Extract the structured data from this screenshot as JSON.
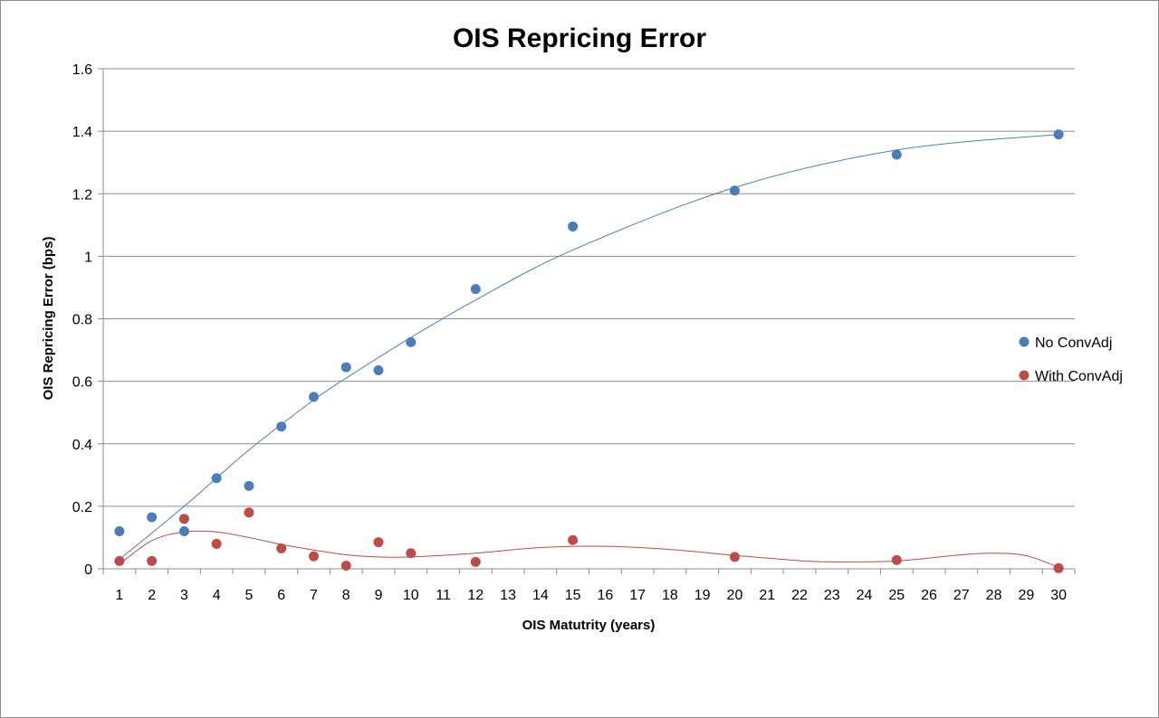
{
  "chart_data": {
    "type": "scatter",
    "title": "OIS Repricing Error",
    "xlabel": "OIS Matutrity  (years)",
    "ylabel": "OIS Repricing Error (bps)",
    "xlim": [
      0.5,
      30.5
    ],
    "ylim": [
      0,
      1.6
    ],
    "x_ticks": [
      "1",
      "2",
      "3",
      "4",
      "5",
      "6",
      "7",
      "8",
      "9",
      "10",
      "11",
      "12",
      "13",
      "14",
      "15",
      "16",
      "17",
      "18",
      "19",
      "20",
      "21",
      "22",
      "23",
      "24",
      "25",
      "26",
      "27",
      "28",
      "29",
      "30"
    ],
    "y_ticks": [
      "0",
      "0.2",
      "0.4",
      "0.6",
      "0.8",
      "1",
      "1.2",
      "1.4",
      "1.6"
    ],
    "grid": "horizontal",
    "legend_position": "right",
    "series": [
      {
        "name": "No ConvAdj",
        "color": "#4a7ebb",
        "x": [
          1,
          2,
          3,
          4,
          5,
          6,
          7,
          8,
          9,
          10,
          12,
          15,
          20,
          25,
          30
        ],
        "y": [
          0.12,
          0.165,
          0.12,
          0.29,
          0.265,
          0.455,
          0.55,
          0.645,
          0.635,
          0.725,
          0.895,
          1.095,
          1.21,
          1.325,
          1.39
        ],
        "trend": {
          "color": "#4a7ebb",
          "x": [
            1,
            3,
            5,
            7,
            8,
            10,
            12,
            15,
            20,
            25,
            30
          ],
          "y": [
            0.03,
            0.2,
            0.38,
            0.54,
            0.61,
            0.74,
            0.86,
            1.02,
            1.22,
            1.34,
            1.39
          ]
        }
      },
      {
        "name": "With ConvAdj",
        "color": "#be4b48",
        "x": [
          1,
          2,
          3,
          4,
          5,
          6,
          7,
          8,
          9,
          10,
          12,
          15,
          20,
          25,
          30
        ],
        "y": [
          0.025,
          0.025,
          0.16,
          0.08,
          0.18,
          0.065,
          0.04,
          0.01,
          0.085,
          0.05,
          0.022,
          0.092,
          0.038,
          0.028,
          0.002
        ],
        "trend": {
          "color": "#be4b48",
          "x": [
            1,
            2,
            3,
            4,
            5,
            6,
            7,
            8,
            9,
            10,
            12,
            14,
            16,
            18,
            20,
            22,
            23,
            25,
            27,
            28,
            29,
            30
          ],
          "y": [
            0.015,
            0.09,
            0.118,
            0.118,
            0.1,
            0.078,
            0.06,
            0.045,
            0.038,
            0.038,
            0.05,
            0.068,
            0.072,
            0.062,
            0.043,
            0.026,
            0.022,
            0.025,
            0.045,
            0.05,
            0.042,
            0.005
          ]
        }
      }
    ]
  }
}
